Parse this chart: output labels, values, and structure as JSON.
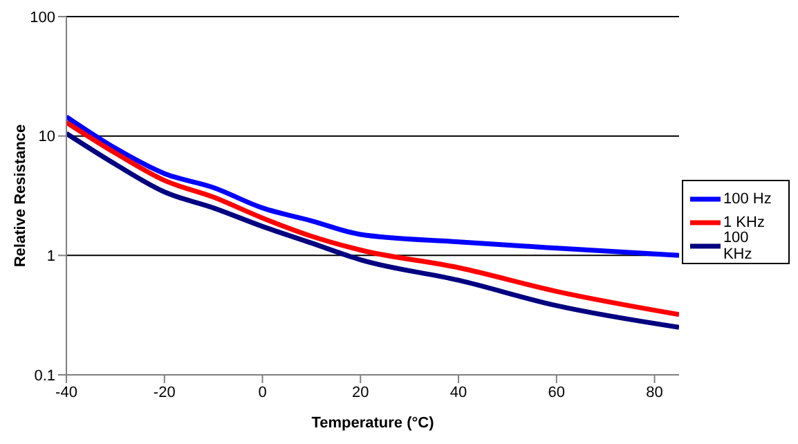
{
  "chart_data": {
    "type": "line",
    "xlabel": "Temperature (°C)",
    "ylabel": "Relative Resistance",
    "log": "y",
    "grid": "y",
    "legend": "right",
    "marker": "none",
    "line_style": "solid",
    "x": [
      -40,
      -30,
      -20,
      -10,
      0,
      10,
      20,
      40,
      60,
      85
    ],
    "xlim": [
      -40,
      85
    ],
    "xticks": [
      -40,
      -20,
      0,
      20,
      40,
      60,
      80
    ],
    "ylim": [
      0.1,
      100
    ],
    "yticks": [
      0.1,
      1,
      10,
      100
    ],
    "series": [
      {
        "name": "100 Hz",
        "color": "#0000ff",
        "values": [
          14.5,
          7.9,
          4.85,
          3.7,
          2.5,
          1.95,
          1.5,
          1.3,
          1.15,
          1.0
        ]
      },
      {
        "name": "1 KHz",
        "color": "#ff0000",
        "values": [
          13,
          7.2,
          4.25,
          3.08,
          2.06,
          1.45,
          1.11,
          0.79,
          0.5,
          0.32
        ]
      },
      {
        "name": "100 KHz",
        "color": "#000080",
        "values": [
          10.5,
          5.8,
          3.4,
          2.5,
          1.75,
          1.27,
          0.92,
          0.62,
          0.38,
          0.25
        ]
      }
    ]
  }
}
